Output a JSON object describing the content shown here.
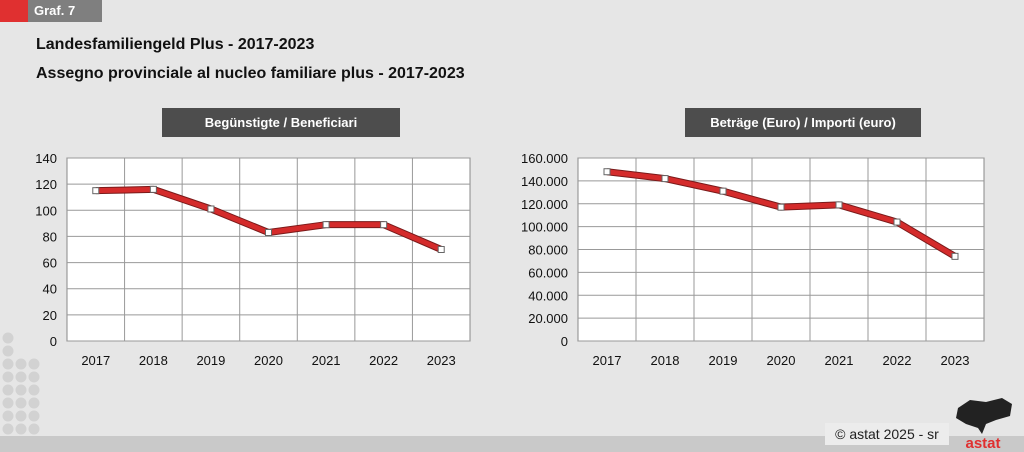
{
  "header": {
    "tab_label": "Graf. 7",
    "title_de": "Landesfamiliengeld Plus - 2017-2023",
    "title_it": "Assegno provinciale al nucleo familiare plus - 2017-2023"
  },
  "footer": {
    "copyright": "© astat 2025 - sr",
    "logo_text": "astat"
  },
  "colors": {
    "line": "#d42b2b",
    "accent": "#e03030",
    "box": "#4d4d4d"
  },
  "chart_data": [
    {
      "type": "line",
      "title": "Begünstigte / Beneficiari",
      "categories": [
        "2017",
        "2018",
        "2019",
        "2020",
        "2021",
        "2022",
        "2023"
      ],
      "values": [
        115,
        116,
        101,
        83,
        89,
        89,
        70
      ],
      "ylim": [
        0,
        140
      ],
      "yticks": [
        0,
        20,
        40,
        60,
        80,
        100,
        120,
        140
      ],
      "ytick_labels": [
        "0",
        "20",
        "40",
        "60",
        "80",
        "100",
        "120",
        "140"
      ],
      "grid": true
    },
    {
      "type": "line",
      "title": "Beträge (Euro) / Importi (euro)",
      "categories": [
        "2017",
        "2018",
        "2019",
        "2020",
        "2021",
        "2022",
        "2023"
      ],
      "values": [
        148000,
        142000,
        131000,
        117000,
        119000,
        104000,
        74000
      ],
      "ylim": [
        0,
        160000
      ],
      "yticks": [
        0,
        20000,
        40000,
        60000,
        80000,
        100000,
        120000,
        140000,
        160000
      ],
      "ytick_labels": [
        "0",
        "20.000",
        "40.000",
        "60.000",
        "80.000",
        "100.000",
        "120.000",
        "140.000",
        "160.000"
      ],
      "grid": true
    }
  ]
}
